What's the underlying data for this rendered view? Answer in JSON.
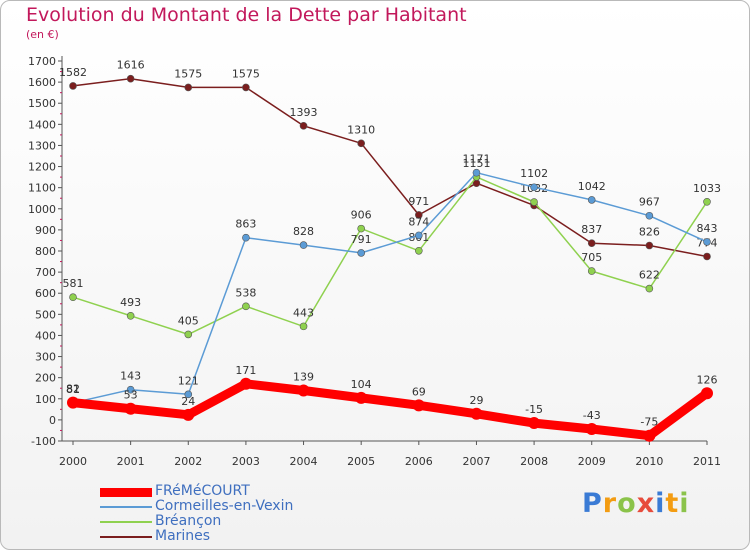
{
  "title": "Evolution du Montant de la Dette par Habitant",
  "subtitle": "(en €)",
  "logo": "Proxiti",
  "chart_data": {
    "type": "line",
    "title": "Evolution du Montant de la Dette par Habitant",
    "subtitle": "(en €)",
    "x": [
      "2000",
      "2001",
      "2002",
      "2003",
      "2004",
      "2005",
      "2006",
      "2007",
      "2008",
      "2009",
      "2010",
      "2011"
    ],
    "ylim": [
      -100,
      1700
    ],
    "yticks": [
      -100,
      0,
      100,
      200,
      300,
      400,
      500,
      600,
      700,
      800,
      900,
      1000,
      1100,
      1200,
      1300,
      1400,
      1500,
      1600,
      1700
    ],
    "grid": false,
    "legend": "bottom-left",
    "series": [
      {
        "name": "Marines",
        "color": "#7b1e1e",
        "values": [
          1582,
          1616,
          1575,
          1575,
          1393,
          1310,
          971,
          1121,
          1016,
          837,
          826,
          774
        ]
      },
      {
        "name": "Bréançon",
        "color": "#8fd14f",
        "values": [
          581,
          493,
          405,
          538,
          443,
          906,
          801,
          1151,
          1032,
          705,
          622,
          1033
        ]
      },
      {
        "name": "Cormeilles-en-Vexin",
        "color": "#5b9bd5",
        "values": [
          81,
          143,
          121,
          863,
          828,
          791,
          874,
          1171,
          1102,
          1042,
          967,
          843
        ]
      },
      {
        "name": "FRéMéCOURT",
        "color": "#ff0000",
        "values": [
          82,
          53,
          24,
          171,
          139,
          104,
          69,
          29,
          -15,
          -43,
          -75,
          126
        ]
      }
    ],
    "labels": {
      "Marines": [
        "1582",
        "1616",
        "1575",
        "1575",
        "1393",
        "1310",
        "971",
        "",
        "",
        "837",
        "826",
        "774"
      ],
      "Bréançon": [
        "581",
        "493",
        "405",
        "538",
        "443",
        "906",
        "801",
        "1151",
        "1032",
        "705",
        "622",
        "1033"
      ],
      "Cormeilles-en-Vexin": [
        "81",
        "143",
        "121",
        "863",
        "828",
        "791",
        "874",
        "1171",
        "1102",
        "1042",
        "967",
        "843"
      ],
      "FRéMéCOURT": [
        "82",
        "53",
        "24",
        "171",
        "139",
        "104",
        "69",
        "29",
        "-15",
        "-43",
        "-75",
        "126"
      ]
    }
  },
  "legend": [
    {
      "name": "FRéMéCOURT",
      "color": "#ff0000"
    },
    {
      "name": "Cormeilles-en-Vexin",
      "color": "#5b9bd5"
    },
    {
      "name": "Bréançon",
      "color": "#8fd14f"
    },
    {
      "name": "Marines",
      "color": "#7b1e1e"
    }
  ]
}
